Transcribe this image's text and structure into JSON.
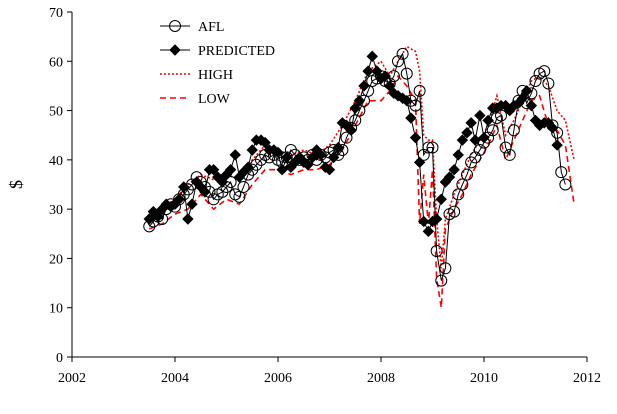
{
  "chart_data": {
    "type": "line",
    "title": "",
    "xlabel": "",
    "ylabel": "$",
    "xlim": [
      2002,
      2012
    ],
    "ylim": [
      0,
      70
    ],
    "xticks": [
      "2002",
      "2004",
      "2006",
      "2008",
      "2010",
      "2012"
    ],
    "yticks": [
      "0",
      "10",
      "20",
      "30",
      "40",
      "50",
      "60",
      "70"
    ],
    "grid": false,
    "legend_position": "top-left",
    "series": [
      {
        "name": "AFL",
        "color": "#000000",
        "marker": "open-circle",
        "line_style": "solid",
        "x": [
          2003.5,
          2003.58,
          2003.67,
          2003.75,
          2003.83,
          2003.92,
          2004.0,
          2004.08,
          2004.17,
          2004.25,
          2004.33,
          2004.42,
          2004.5,
          2004.58,
          2004.67,
          2004.75,
          2004.83,
          2004.92,
          2005.0,
          2005.08,
          2005.17,
          2005.25,
          2005.33,
          2005.42,
          2005.5,
          2005.58,
          2005.67,
          2005.75,
          2005.83,
          2005.92,
          2006.0,
          2006.08,
          2006.17,
          2006.25,
          2006.33,
          2006.42,
          2006.5,
          2006.58,
          2006.67,
          2006.75,
          2006.83,
          2006.92,
          2007.0,
          2007.08,
          2007.17,
          2007.25,
          2007.33,
          2007.42,
          2007.5,
          2007.58,
          2007.67,
          2007.75,
          2007.83,
          2007.92,
          2008.0,
          2008.08,
          2008.17,
          2008.25,
          2008.33,
          2008.42,
          2008.5,
          2008.58,
          2008.67,
          2008.75,
          2008.83,
          2008.92,
          2009.0,
          2009.08,
          2009.17,
          2009.25,
          2009.33,
          2009.42,
          2009.5,
          2009.58,
          2009.67,
          2009.75,
          2009.83,
          2009.92,
          2010.0,
          2010.08,
          2010.17,
          2010.25,
          2010.33,
          2010.42,
          2010.5,
          2010.58,
          2010.67,
          2010.75,
          2010.83,
          2010.92,
          2011.0,
          2011.08,
          2011.17,
          2011.25,
          2011.33,
          2011.42,
          2011.5,
          2011.58,
          2011.67,
          2011.75
        ],
        "y": [
          26.5,
          27.5,
          28.5,
          28,
          30,
          31,
          30.5,
          32,
          33,
          34,
          35,
          36.5,
          35.5,
          34.5,
          33.5,
          32,
          33,
          33.5,
          34.5,
          35.5,
          33,
          32.5,
          34.5,
          37,
          38,
          39,
          40,
          41,
          40.5,
          41,
          40,
          39.5,
          40.5,
          42,
          41,
          40,
          40.5,
          40,
          41,
          40,
          41,
          40.5,
          41.5,
          42,
          41,
          42,
          44.5,
          46.5,
          48,
          50,
          52,
          54,
          56,
          56.5,
          57,
          56,
          55.5,
          57,
          60,
          61.5,
          57.5,
          52,
          51,
          54,
          41,
          42.5,
          42.5,
          21.5,
          15.5,
          18,
          29,
          29.5,
          33,
          35,
          37,
          39.5,
          40.5,
          42,
          43.5,
          44.5,
          46,
          48.5,
          49,
          42.5,
          41,
          46,
          52,
          54,
          51.5,
          53.5,
          56,
          57.5,
          58,
          55.5,
          47,
          45.5,
          37.5,
          35,
          null,
          null
        ]
      },
      {
        "name": "PREDICTED",
        "color": "#000000",
        "marker": "filled-diamond",
        "line_style": "solid",
        "x": [
          2003.5,
          2003.58,
          2003.67,
          2003.75,
          2003.83,
          2003.92,
          2004.0,
          2004.08,
          2004.17,
          2004.25,
          2004.33,
          2004.42,
          2004.5,
          2004.58,
          2004.67,
          2004.75,
          2004.83,
          2004.92,
          2005.0,
          2005.08,
          2005.17,
          2005.25,
          2005.33,
          2005.42,
          2005.5,
          2005.58,
          2005.67,
          2005.75,
          2005.83,
          2005.92,
          2006.0,
          2006.08,
          2006.17,
          2006.25,
          2006.33,
          2006.42,
          2006.5,
          2006.58,
          2006.67,
          2006.75,
          2006.83,
          2006.92,
          2007.0,
          2007.08,
          2007.17,
          2007.25,
          2007.33,
          2007.42,
          2007.5,
          2007.58,
          2007.67,
          2007.75,
          2007.83,
          2007.92,
          2008.0,
          2008.08,
          2008.17,
          2008.25,
          2008.33,
          2008.42,
          2008.5,
          2008.58,
          2008.67,
          2008.75,
          2008.83,
          2008.92,
          2009.0,
          2009.08,
          2009.17,
          2009.25,
          2009.33,
          2009.42,
          2009.5,
          2009.58,
          2009.67,
          2009.75,
          2009.83,
          2009.92,
          2010.0,
          2010.08,
          2010.17,
          2010.25,
          2010.33,
          2010.42,
          2010.5,
          2010.58,
          2010.67,
          2010.75,
          2010.83,
          2010.92,
          2011.0,
          2011.08,
          2011.17,
          2011.25,
          2011.33,
          2011.42,
          2011.5,
          2011.58,
          2011.67,
          2011.75
        ],
        "y": [
          28,
          29.5,
          28.5,
          30,
          31,
          30.5,
          31,
          32,
          34.5,
          28,
          31,
          35.5,
          34.5,
          33.5,
          38,
          38,
          36.5,
          35.5,
          37,
          38,
          41,
          36.5,
          37.5,
          38.5,
          42,
          44,
          44,
          43.5,
          42,
          42,
          41.5,
          38,
          40.5,
          38.5,
          39.5,
          40.5,
          39.5,
          39,
          40.5,
          42,
          41,
          38.5,
          38,
          40.5,
          42.5,
          47.5,
          47,
          46,
          50.5,
          52,
          55,
          58,
          61,
          58,
          56.5,
          57,
          55,
          53.5,
          53,
          52.5,
          52,
          48.5,
          44.5,
          39.5,
          27.5,
          25.5,
          27.5,
          28,
          32,
          35.5,
          36.5,
          38,
          41,
          44,
          45.5,
          47.5,
          44,
          49,
          44.5,
          48,
          50.5,
          50.5,
          51,
          51,
          50,
          51,
          51.5,
          52.5,
          54,
          51,
          48,
          47,
          47.5,
          47.5,
          46.5,
          43,
          null,
          null,
          null,
          null
        ]
      },
      {
        "name": "HIGH",
        "color": "#ff0000",
        "marker": "none",
        "line_style": "dotted",
        "x": [
          2003.5,
          2003.75,
          2004.0,
          2004.25,
          2004.5,
          2004.75,
          2005.0,
          2005.25,
          2005.5,
          2005.75,
          2006.0,
          2006.25,
          2006.5,
          2006.75,
          2007.0,
          2007.25,
          2007.5,
          2007.75,
          2008.0,
          2008.17,
          2008.33,
          2008.5,
          2008.67,
          2008.75,
          2008.83,
          2008.92,
          2009.0,
          2009.08,
          2009.17,
          2009.25,
          2009.42,
          2009.58,
          2009.75,
          2009.92,
          2010.08,
          2010.25,
          2010.42,
          2010.58,
          2010.75,
          2010.92,
          2011.08,
          2011.25,
          2011.42,
          2011.58,
          2011.75
        ],
        "y": [
          28,
          30,
          32,
          35,
          37,
          36,
          37,
          36,
          40,
          43,
          42,
          41,
          42,
          41,
          43,
          47,
          52,
          58,
          60,
          57,
          60,
          63,
          62,
          58,
          45,
          44,
          44,
          28,
          18,
          28,
          33,
          37,
          41,
          44,
          47,
          53,
          45,
          48,
          52,
          56,
          57,
          55,
          50,
          48,
          40
        ]
      },
      {
        "name": "LOW",
        "color": "#ff0000",
        "marker": "none",
        "line_style": "dashed",
        "x": [
          2003.5,
          2003.75,
          2004.0,
          2004.25,
          2004.5,
          2004.75,
          2005.0,
          2005.25,
          2005.5,
          2005.75,
          2006.0,
          2006.25,
          2006.5,
          2006.75,
          2007.0,
          2007.25,
          2007.5,
          2007.75,
          2008.0,
          2008.17,
          2008.33,
          2008.5,
          2008.67,
          2008.75,
          2008.83,
          2008.92,
          2009.0,
          2009.08,
          2009.17,
          2009.25,
          2009.42,
          2009.58,
          2009.75,
          2009.92,
          2010.08,
          2010.25,
          2010.42,
          2010.58,
          2010.75,
          2010.92,
          2011.08,
          2011.25,
          2011.42,
          2011.58,
          2011.75
        ],
        "y": [
          26,
          27,
          29,
          30,
          33,
          30,
          32,
          31,
          35,
          38,
          38,
          37,
          38,
          38,
          39,
          42,
          47,
          52,
          52,
          54,
          57,
          55,
          52,
          27,
          37,
          27,
          38,
          16,
          10,
          26,
          30,
          33,
          37,
          40,
          43,
          47,
          40,
          44,
          48,
          52,
          53,
          47,
          46,
          43,
          31
        ]
      }
    ]
  }
}
